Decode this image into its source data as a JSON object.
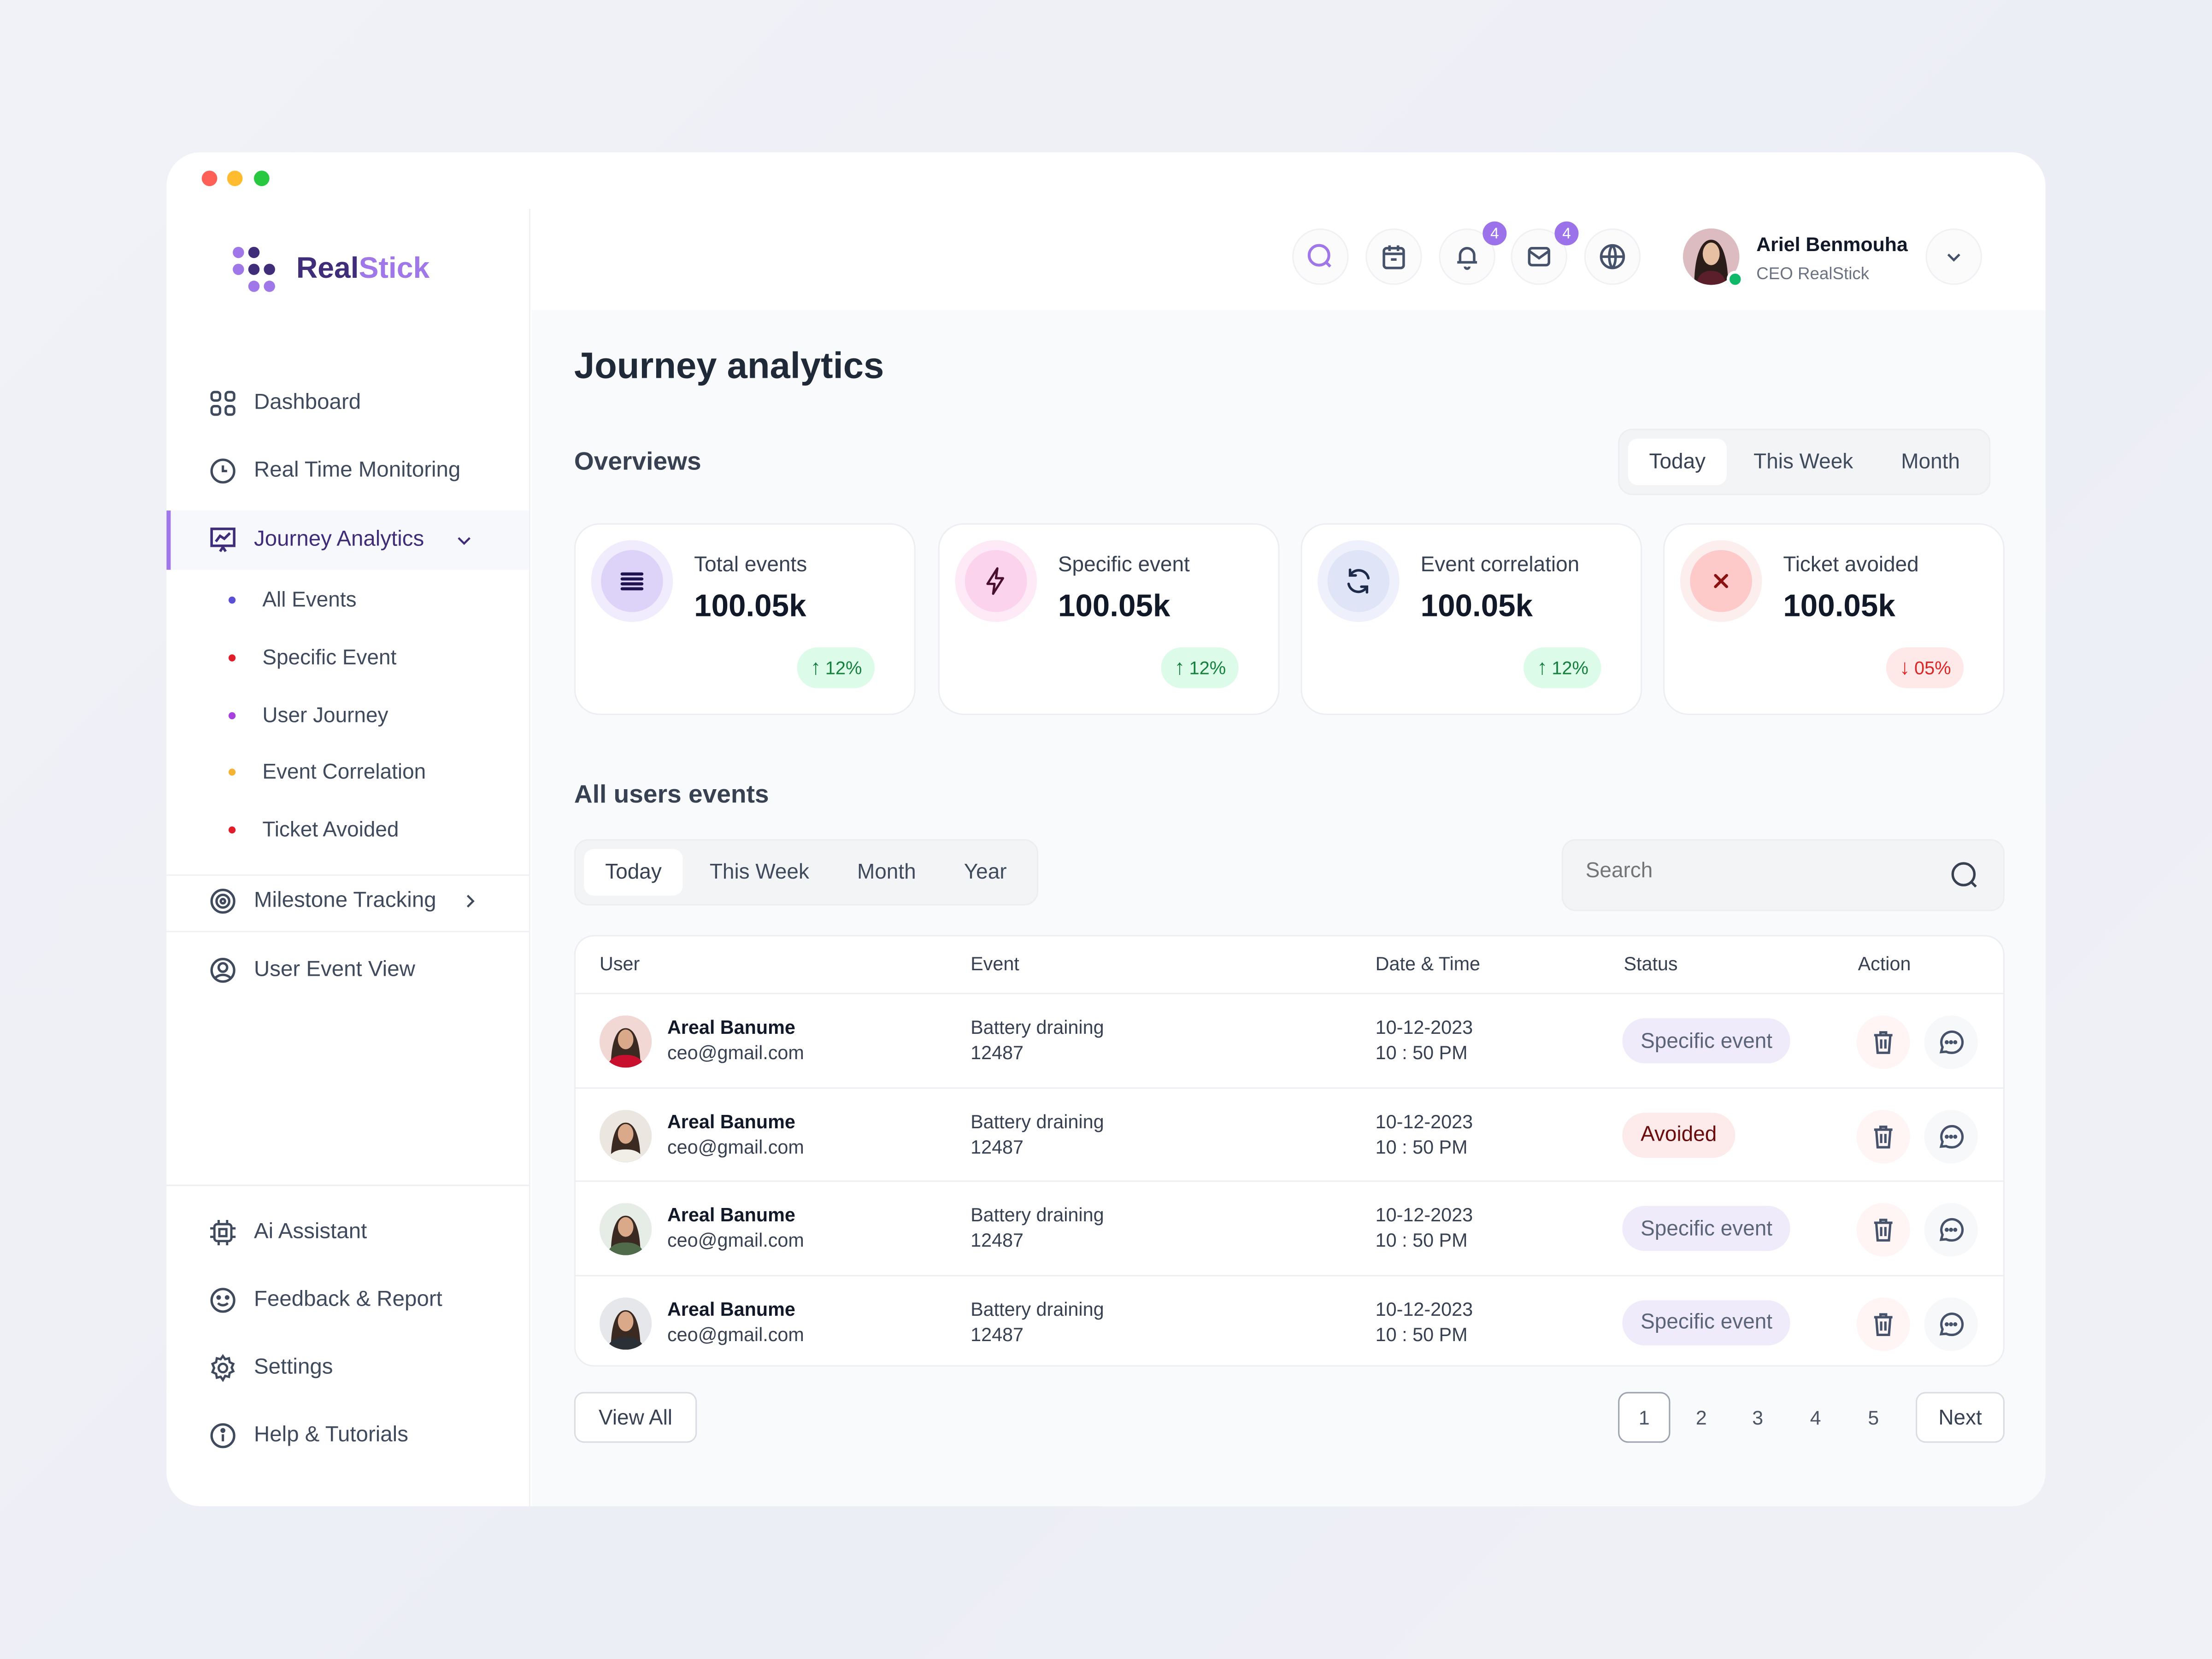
{
  "window": {
    "controls": [
      "close",
      "minimize",
      "maximize"
    ]
  },
  "brand": {
    "name_part1": "Real",
    "name_part2": "Stick",
    "colors": {
      "dark": "#3f2d7a",
      "light": "#9f77e8"
    }
  },
  "sidebar": {
    "items": [
      {
        "label": "Dashboard",
        "icon": "grid-icon"
      },
      {
        "label": "Real Time Monitoring",
        "icon": "clock-icon"
      },
      {
        "label": "Journey Analytics",
        "icon": "presentation-chart-icon",
        "active": true,
        "expanded": true
      }
    ],
    "sub_items": [
      {
        "label": "All Events",
        "dot": "#5b4fd6"
      },
      {
        "label": "Specific Event",
        "dot": "#e11d2a"
      },
      {
        "label": "User Journey",
        "dot": "#a83fe0"
      },
      {
        "label": "Event Correlation",
        "dot": "#f5b335"
      },
      {
        "label": "Ticket Avoided",
        "dot": "#e11d2a"
      }
    ],
    "items2": [
      {
        "label": "Milestone Tracking",
        "icon": "target-icon"
      },
      {
        "label": "User Event View",
        "icon": "user-circle-icon"
      }
    ],
    "bottom": [
      {
        "label": "Ai Assistant",
        "icon": "cpu-icon"
      },
      {
        "label": "Feedback & Report",
        "icon": "smile-icon"
      },
      {
        "label": "Settings",
        "icon": "gear-icon"
      },
      {
        "label": "Help & Tutorials",
        "icon": "info-icon"
      }
    ]
  },
  "header": {
    "notifications_count": "4",
    "messages_count": "4",
    "user": {
      "name": "Ariel Benmouha",
      "role": "CEO RealStick",
      "status": "online"
    }
  },
  "page": {
    "title": "Journey analytics"
  },
  "overviews": {
    "title": "Overviews",
    "tabs": [
      "Today",
      "This Week",
      "Month"
    ],
    "active_tab": "Today",
    "cards": [
      {
        "title": "Total events",
        "value": "100.05k",
        "change": "12%",
        "trend": "up",
        "icon": "menu-lines-icon"
      },
      {
        "title": "Specific event",
        "value": "100.05k",
        "change": "12%",
        "trend": "up",
        "icon": "lightning-icon"
      },
      {
        "title": "Event correlation",
        "value": "100.05k",
        "change": "12%",
        "trend": "up",
        "icon": "refresh-icon"
      },
      {
        "title": "Ticket avoided",
        "value": "100.05k",
        "change": "05%",
        "trend": "down",
        "icon": "close-icon"
      }
    ]
  },
  "events": {
    "title": "All users events",
    "tabs": [
      "Today",
      "This Week",
      "Month",
      "Year"
    ],
    "active_tab": "Today",
    "search_placeholder": "Search",
    "columns": [
      "User",
      "Event",
      "Date & Time",
      "Status",
      "Action"
    ],
    "rows": [
      {
        "name": "Areal Banume",
        "email": "ceo@gmail.com",
        "event": "Battery draining",
        "event_id": "12487",
        "date": "10-12-2023",
        "time": "10 : 50 PM",
        "status": "Specific event"
      },
      {
        "name": "Areal Banume",
        "email": "ceo@gmail.com",
        "event": "Battery draining",
        "event_id": "12487",
        "date": "10-12-2023",
        "time": "10 : 50 PM",
        "status": "Avoided"
      },
      {
        "name": "Areal Banume",
        "email": "ceo@gmail.com",
        "event": "Battery draining",
        "event_id": "12487",
        "date": "10-12-2023",
        "time": "10 : 50 PM",
        "status": "Specific event"
      },
      {
        "name": "Areal Banume",
        "email": "ceo@gmail.com",
        "event": "Battery draining",
        "event_id": "12487",
        "date": "10-12-2023",
        "time": "10 : 50 PM",
        "status": "Specific event"
      }
    ],
    "view_all": "View All",
    "pages": [
      "1",
      "2",
      "3",
      "4",
      "5"
    ],
    "current_page": "1",
    "next": "Next"
  }
}
